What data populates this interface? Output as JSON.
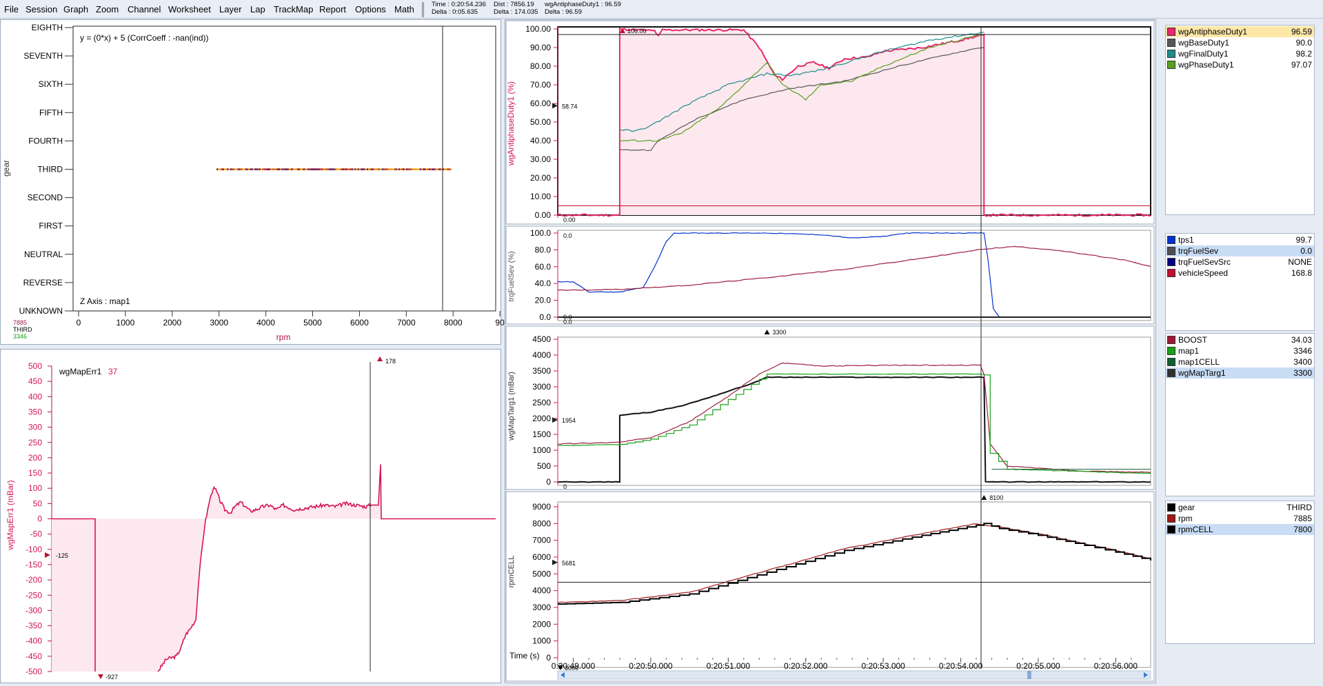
{
  "menu": [
    "File",
    "Session",
    "Graph",
    "Zoom",
    "Channel",
    "Worksheet",
    "Layer",
    "Lap",
    "TrackMap",
    "Report",
    "Options",
    "Math"
  ],
  "status": {
    "time": "Time : 0:20:54.236",
    "delta_time": "Delta : 0:05.635",
    "dist": "Dist : 7856.19",
    "delta_dist": "Delta : 174.035",
    "channel": "wgAntiphaseDuty1 : 96.59",
    "delta_channel": "Delta : 96.59"
  },
  "colors": {
    "accent": "#d4145a",
    "fill": "#fce8ee",
    "grey": "#585858",
    "teal": "#1e8a8a",
    "olive": "#5aa020",
    "blue": "#0033cc",
    "maroon": "#9c1e3e",
    "green": "#18a018",
    "selected_row": "#c8dcf4",
    "highlight_row": "#fde8a8"
  },
  "scatter": {
    "y_label": "gear",
    "x_label": "rpm",
    "gears": [
      "EIGHTH",
      "SEVENTH",
      "SIXTH",
      "FIFTH",
      "FOURTH",
      "THIRD",
      "SECOND",
      "FIRST",
      "NEUTRAL",
      "REVERSE",
      "UNKNOWN"
    ],
    "x_ticks": [
      "0",
      "1000",
      "2000",
      "3000",
      "4000",
      "5000",
      "6000",
      "7000",
      "8000",
      "90"
    ],
    "equation": "y = (0*x) + 5  (CorrCoeff : -nan(ind))",
    "z_axis": "Z Axis : map1",
    "cursor_readout": [
      "7885",
      "THIRD",
      "3346"
    ]
  },
  "err_chart": {
    "title": "wgMapErr1",
    "value": "37",
    "y_label": "wgMapErr1 (mBar)",
    "y_ticks": [
      "500",
      "450",
      "400",
      "350",
      "300",
      "250",
      "200",
      "150",
      "100",
      "50",
      "0",
      "-50",
      "-100",
      "-150",
      "-200",
      "-250",
      "-300",
      "-350",
      "-400",
      "-450",
      "-500"
    ],
    "marker_left": "-125",
    "marker_min": "-927",
    "marker_max": "178"
  },
  "charts": {
    "duty": {
      "y_label": "wgAntiphaseDuty1 (%)",
      "y_ticks": [
        "100.00",
        "90.00",
        "80.00",
        "70.00",
        "60.00",
        "50.00",
        "40.00",
        "30.00",
        "20.00",
        "10.00",
        "0.00"
      ],
      "marker_top": "100.00",
      "marker_left": "58.74",
      "marker_bottom": "0.00"
    },
    "fuel": {
      "y_label": "trqFuelSev (%)",
      "y_ticks": [
        "100.0",
        "80.0",
        "60.0",
        "40.0",
        "20.0",
        "0.0"
      ],
      "marker_top": "0.0",
      "marker_left": "0.0",
      "marker_bottom": "0.0"
    },
    "map": {
      "y_label": "wgMapTarg1 (mBar)",
      "y_ticks": [
        "4500",
        "4000",
        "3500",
        "3000",
        "2500",
        "2000",
        "1500",
        "1000",
        "500",
        "0"
      ],
      "marker_top": "3300",
      "marker_left": "1954",
      "marker_bottom": "0"
    },
    "rpm": {
      "y_label": "rpmCELL",
      "y_ticks": [
        "9000",
        "8000",
        "7000",
        "6000",
        "5000",
        "4000",
        "3000",
        "2000",
        "1000",
        "0"
      ],
      "marker_top": "8100",
      "marker_left": "5681",
      "marker_bottom": "3000"
    }
  },
  "time_axis": {
    "label": "Time (s)",
    "ticks": [
      "0:20:49.000",
      "0:20:50.000",
      "0:20:51.000",
      "0:20:52.000",
      "0:20:53.000",
      "0:20:54.000",
      "0:20:55.000",
      "0:20:56.000"
    ]
  },
  "legends": [
    {
      "rows": [
        {
          "name": "wgAntiphaseDuty1",
          "value": "96.59",
          "color": "#e8286a",
          "state": "hl"
        },
        {
          "name": "wgBaseDuty1",
          "value": "90.0",
          "color": "#585858",
          "state": ""
        },
        {
          "name": "wgFinalDuty1",
          "value": "98.2",
          "color": "#1e8a8a",
          "state": ""
        },
        {
          "name": "wgPhaseDuty1",
          "value": "97.07",
          "color": "#5aa020",
          "state": ""
        }
      ]
    },
    {
      "rows": [
        {
          "name": "tps1",
          "value": "99.7",
          "color": "#0033cc",
          "state": ""
        },
        {
          "name": "trqFuelSev",
          "value": "0.0",
          "color": "#505050",
          "state": "sel"
        },
        {
          "name": "trqFuelSevSrc",
          "value": "NONE",
          "color": "#000080",
          "state": ""
        },
        {
          "name": "vehicleSpeed",
          "value": "168.8",
          "color": "#c01030",
          "state": ""
        }
      ]
    },
    {
      "rows": [
        {
          "name": "BOOST",
          "value": "34.03",
          "color": "#a01838",
          "state": ""
        },
        {
          "name": "map1",
          "value": "3346",
          "color": "#18a018",
          "state": ""
        },
        {
          "name": "map1CELL",
          "value": "3400",
          "color": "#106030",
          "state": ""
        },
        {
          "name": "wgMapTarg1",
          "value": "3300",
          "color": "#303030",
          "state": "sel"
        }
      ]
    },
    {
      "rows": [
        {
          "name": "gear",
          "value": "THIRD",
          "color": "#000000",
          "state": ""
        },
        {
          "name": "rpm",
          "value": "7885",
          "color": "#a01818",
          "state": ""
        },
        {
          "name": "rpmCELL",
          "value": "7800",
          "color": "#000000",
          "state": "sel"
        }
      ]
    }
  ]
}
